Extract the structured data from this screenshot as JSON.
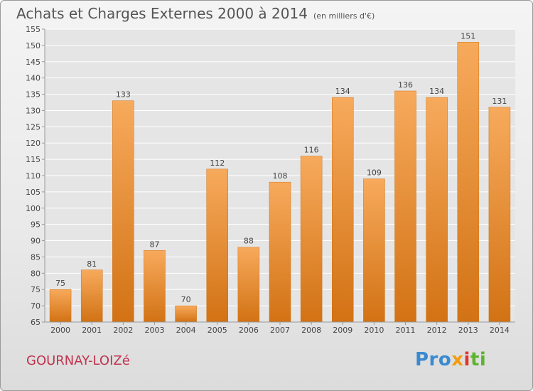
{
  "title": "Achats et Charges Externes 2000 à 2014",
  "unit": "(en milliers d'€)",
  "commune": "GOURNAY-LOIZé",
  "logo": {
    "p1": "Pro",
    "p2": "x",
    "p3": "i",
    "p4": "ti"
  },
  "colors": {
    "bar": "#e8882a",
    "bar_light": "#f7aa5c",
    "bar_dark": "#d27214",
    "grid": "#ffffff",
    "title": "#555555",
    "commune": "#c0334e"
  },
  "chart_data": {
    "type": "bar",
    "categories": [
      "2000",
      "2001",
      "2002",
      "2003",
      "2004",
      "2005",
      "2006",
      "2007",
      "2008",
      "2009",
      "2010",
      "2011",
      "2012",
      "2013",
      "2014"
    ],
    "values": [
      75,
      81,
      133,
      87,
      70,
      112,
      88,
      108,
      116,
      134,
      109,
      136,
      134,
      151,
      131
    ],
    "ylim": [
      65,
      155
    ],
    "ytick_step": 5,
    "grid": true,
    "xlabel": "",
    "ylabel": ""
  }
}
